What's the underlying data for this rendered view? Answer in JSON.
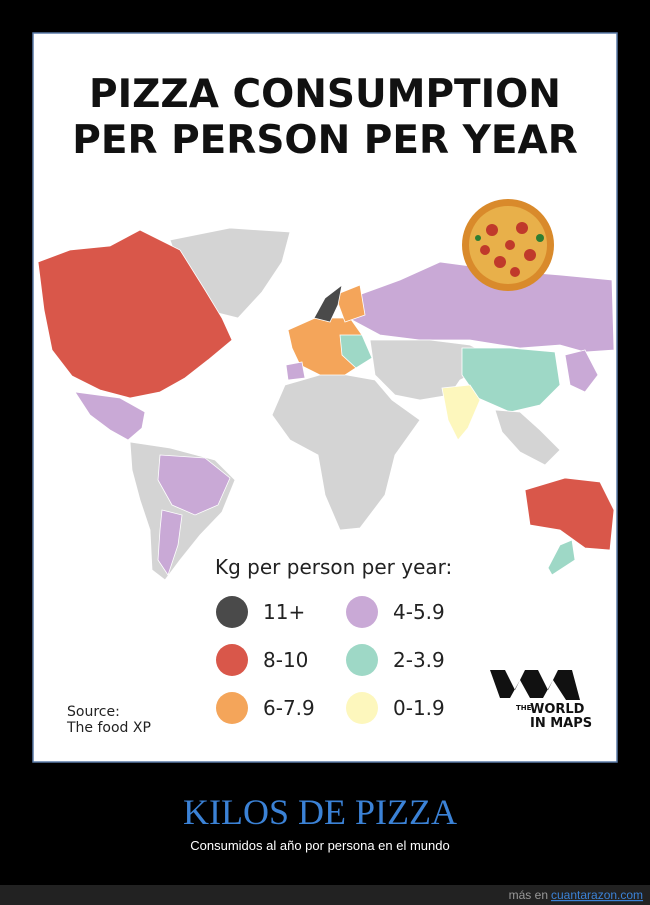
{
  "header": {
    "title_lines": [
      "PIZZA CONSUMPTION",
      "PER PERSON PER YEAR"
    ]
  },
  "legend": {
    "title": "Kg per person per year:",
    "items": [
      {
        "label": "11+",
        "color": "#4a4a4a"
      },
      {
        "label": "8-10",
        "color": "#d9574a"
      },
      {
        "label": "6-7.9",
        "color": "#f4a55a"
      },
      {
        "label": "4-5.9",
        "color": "#c9a9d6"
      },
      {
        "label": "2-3.9",
        "color": "#9ed8c6"
      },
      {
        "label": "0-1.9",
        "color": "#fdf7bd"
      }
    ]
  },
  "source": [
    "Source:",
    "The food XP"
  ],
  "logo": [
    "THE",
    "WORLD",
    "IN MAPS"
  ],
  "caption": {
    "title": "KILOS DE PIZZA",
    "subtitle": "Consumidos al año por persona en el mundo"
  },
  "footer": {
    "prefix": "más en",
    "link": "cuantarazon.com"
  }
}
